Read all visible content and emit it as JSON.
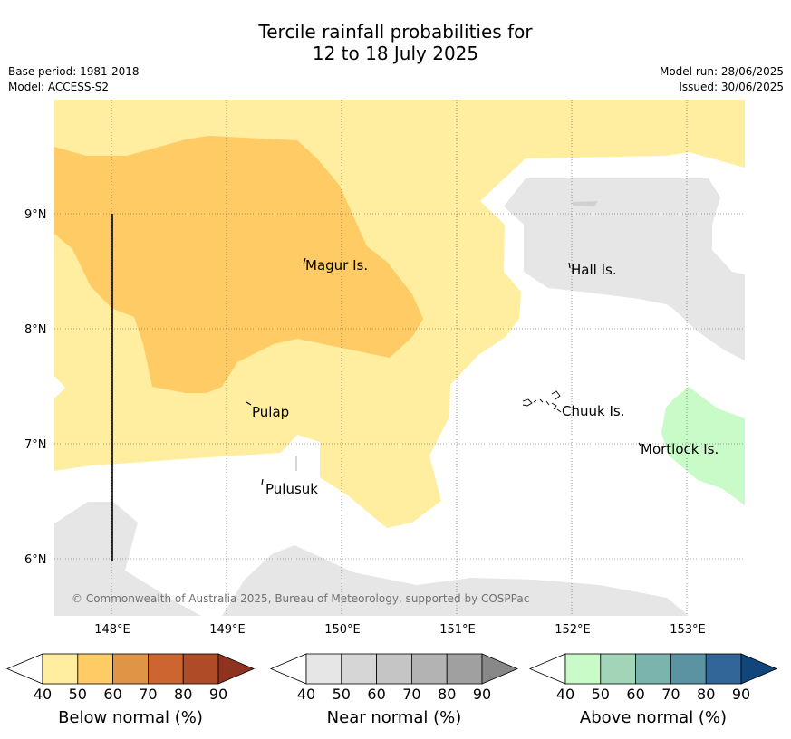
{
  "title_line1": "Tercile rainfall probabilities for",
  "title_line2": "12 to 18 July 2025",
  "base_period": "Base period: 1981-2018",
  "model": "Model: ACCESS-S2",
  "model_run": "Model run: 28/06/2025",
  "issued": "Issued: 30/06/2025",
  "copyright": "© Commonwealth of Australia 2025, Bureau of Meteorology, supported by COSPPac",
  "map": {
    "lon_range": [
      147.5,
      153.5
    ],
    "lat_range": [
      5.5,
      10.0
    ],
    "lat_ticks": [
      "9°N",
      "8°N",
      "7°N",
      "6°N"
    ],
    "lon_ticks": [
      "148°E",
      "149°E",
      "150°E",
      "151°E",
      "152°E",
      "153°E"
    ],
    "places": {
      "magur": "Magur Is.",
      "hall": "Hall Is.",
      "pulap": "Pulap",
      "chuuk": "Chuuk Is.",
      "mortlock": "Mortlock Is.",
      "pulusuk": "Pulusuk"
    }
  },
  "colorbars": {
    "below": {
      "title": "Below normal (%)",
      "colors": [
        "#ffffff",
        "#ffeda0",
        "#fecb65",
        "#e09445",
        "#cc6530",
        "#b04b27",
        "#8f3220"
      ],
      "labels": [
        "40",
        "50",
        "60",
        "70",
        "80",
        "90"
      ]
    },
    "near": {
      "title": "Near normal (%)",
      "colors": [
        "#ffffff",
        "#e6e6e6",
        "#d6d6d6",
        "#c5c5c5",
        "#b3b3b3",
        "#a0a0a0",
        "#888888"
      ],
      "labels": [
        "40",
        "50",
        "60",
        "70",
        "80",
        "90"
      ]
    },
    "above": {
      "title": "Above normal (%)",
      "colors": [
        "#ffffff",
        "#c8fbc8",
        "#a2d5b8",
        "#7bb3ad",
        "#5b93a3",
        "#326598",
        "#10467c"
      ],
      "labels": [
        "40",
        "50",
        "60",
        "70",
        "80",
        "90"
      ]
    }
  }
}
